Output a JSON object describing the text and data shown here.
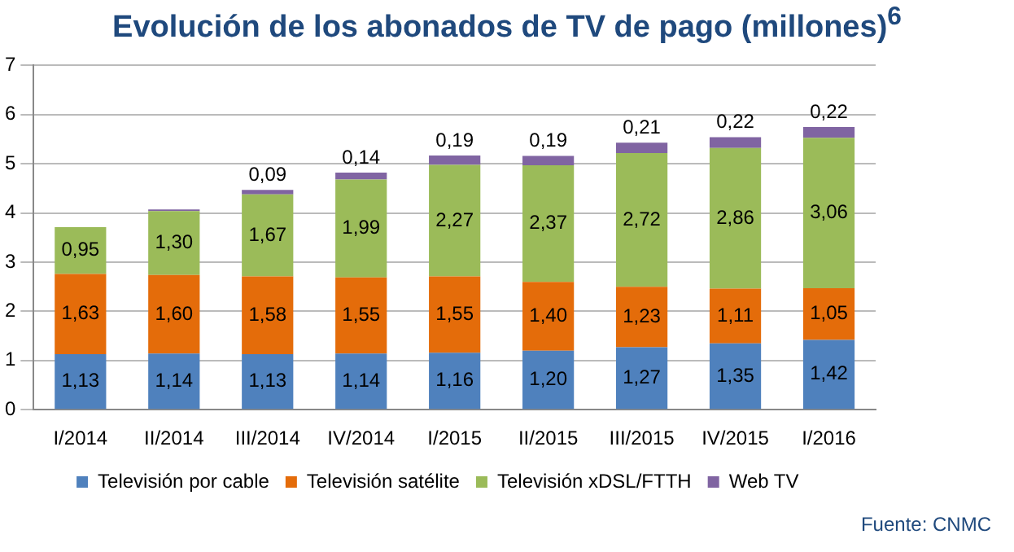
{
  "chart_data": {
    "type": "bar",
    "stacked": true,
    "title": "Evolución de los abonados de TV de pago (millones)$^{6}$",
    "categories": [
      "I/2014",
      "II/2014",
      "III/2014",
      "IV/2014",
      "I/2015",
      "II/2015",
      "III/2015",
      "IV/2015",
      "I/2016"
    ],
    "series": [
      {
        "name": "Televisión por cable",
        "color": "#4f81bd",
        "values": [
          1.13,
          1.14,
          1.13,
          1.14,
          1.16,
          1.2,
          1.27,
          1.35,
          1.42
        ],
        "value_labels": [
          "1,13",
          "1,14",
          "1,13",
          "1,14",
          "1,16",
          "1,20",
          "1,27",
          "1,35",
          "1,42"
        ]
      },
      {
        "name": "Televisión satélite",
        "color": "#e46c0a",
        "values": [
          1.63,
          1.6,
          1.58,
          1.55,
          1.55,
          1.4,
          1.23,
          1.11,
          1.05
        ],
        "value_labels": [
          "1,63",
          "1,60",
          "1,58",
          "1,55",
          "1,55",
          "1,40",
          "1,23",
          "1,11",
          "1,05"
        ]
      },
      {
        "name": "Televisión xDSL/FTTH",
        "color": "#9bbb59",
        "values": [
          0.95,
          1.3,
          1.67,
          1.99,
          2.27,
          2.37,
          2.72,
          2.86,
          3.06
        ],
        "value_labels": [
          "0,95",
          "1,30",
          "1,67",
          "1,99",
          "2,27",
          "2,37",
          "2,72",
          "2,86",
          "3,06"
        ]
      },
      {
        "name": "Web TV",
        "color": "#8064a2",
        "values": [
          null,
          0.03,
          0.09,
          0.14,
          0.19,
          0.19,
          0.21,
          0.22,
          0.22
        ],
        "value_labels": [
          null,
          null,
          "0,09",
          "0,14",
          "0,19",
          "0,19",
          "0,21",
          "0,22",
          "0,22"
        ]
      }
    ],
    "ylim": [
      0,
      7
    ],
    "yticks": [
      0,
      1,
      2,
      3,
      4,
      5,
      6,
      7
    ],
    "grid": "y",
    "legend": "bottom",
    "annotations": [
      "Fuente: CNMC"
    ]
  }
}
